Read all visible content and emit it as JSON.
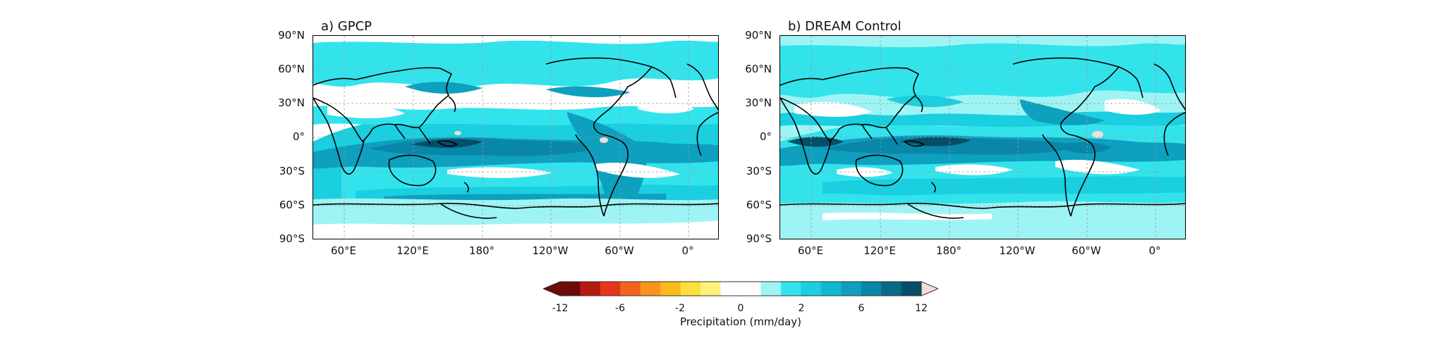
{
  "panels": [
    {
      "title": "a) GPCP",
      "lat_ticks": [
        "90°N",
        "60°N",
        "30°N",
        "0°",
        "30°S",
        "60°S",
        "90°S"
      ],
      "lon_ticks": [
        "60°E",
        "120°E",
        "180°",
        "120°W",
        "60°W",
        "0°"
      ]
    },
    {
      "title": "b) DREAM Control",
      "lat_ticks": [
        "90°N",
        "60°N",
        "30°N",
        "0°",
        "30°S",
        "60°S",
        "90°S"
      ],
      "lon_ticks": [
        "60°E",
        "120°E",
        "180°",
        "120°W",
        "60°W",
        "0°"
      ]
    }
  ],
  "colorbar": {
    "label": "Precipitation (mm/day)",
    "ticks": [
      "-12",
      "-6",
      "-2",
      "0",
      "2",
      "6",
      "12"
    ],
    "colors": [
      "#6e0a0a",
      "#b41a10",
      "#e6361a",
      "#f2641e",
      "#f7941e",
      "#fbb91a",
      "#fde040",
      "#fff27a",
      "#ffffff",
      "#ffffff",
      "#9ef4f4",
      "#33e3ec",
      "#19cfe0",
      "#12b8d2",
      "#0ea0be",
      "#0a86a8",
      "#086a88",
      "#064e68"
    ]
  },
  "palette": {
    "land_outline": "#000000",
    "grid": "#9a9a9a",
    "light": "#9ef4f4",
    "mid": "#33e3ec",
    "strong": "#19cfe0",
    "deeper": "#0ea0be",
    "deep": "#0a86a8",
    "darkest": "#064e68",
    "dry_pink": "#f6dcd8"
  }
}
